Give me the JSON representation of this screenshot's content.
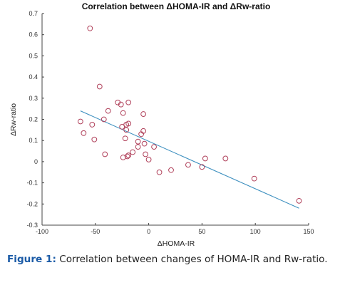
{
  "chart_data": {
    "type": "scatter",
    "title": "Correlation between ΔHOMA-IR and ΔRw-ratio",
    "xlabel": "ΔHOMA-IR",
    "ylabel": "ΔRw-ratio",
    "xlim": [
      -100,
      150
    ],
    "ylim": [
      -0.3,
      0.7
    ],
    "x_ticks": [
      "-100",
      "-50",
      "0",
      "50",
      "100",
      "150"
    ],
    "y_ticks": [
      "-0.3",
      "-0.2",
      "-0.1",
      "0",
      "0.1",
      "0.2",
      "0.3",
      "0.4",
      "0.5",
      "0.6",
      "0.7"
    ],
    "grid": false,
    "marker_color": "#b0405a",
    "trend_color": "#3c8fbf",
    "points": [
      {
        "x": -55,
        "y": 0.63
      },
      {
        "x": -46,
        "y": 0.355
      },
      {
        "x": -64,
        "y": 0.19
      },
      {
        "x": -61,
        "y": 0.135
      },
      {
        "x": -53,
        "y": 0.175
      },
      {
        "x": -51,
        "y": 0.105
      },
      {
        "x": -42,
        "y": 0.2
      },
      {
        "x": -41,
        "y": 0.035
      },
      {
        "x": -38,
        "y": 0.24
      },
      {
        "x": -29,
        "y": 0.28
      },
      {
        "x": -26,
        "y": 0.27
      },
      {
        "x": -19,
        "y": 0.28
      },
      {
        "x": -24,
        "y": 0.23
      },
      {
        "x": -25,
        "y": 0.165
      },
      {
        "x": -21,
        "y": 0.175
      },
      {
        "x": -19,
        "y": 0.18
      },
      {
        "x": -21,
        "y": 0.15
      },
      {
        "x": -22,
        "y": 0.11
      },
      {
        "x": -24,
        "y": 0.02
      },
      {
        "x": -20,
        "y": 0.025
      },
      {
        "x": -19,
        "y": 0.03
      },
      {
        "x": -15,
        "y": 0.045
      },
      {
        "x": -10,
        "y": 0.095
      },
      {
        "x": -10,
        "y": 0.07
      },
      {
        "x": -7,
        "y": 0.13
      },
      {
        "x": -5,
        "y": 0.225
      },
      {
        "x": -5,
        "y": 0.145
      },
      {
        "x": -4,
        "y": 0.085
      },
      {
        "x": -3,
        "y": 0.035
      },
      {
        "x": 0,
        "y": 0.01
      },
      {
        "x": 5,
        "y": 0.07
      },
      {
        "x": 10,
        "y": -0.05
      },
      {
        "x": 21,
        "y": -0.04
      },
      {
        "x": 37,
        "y": -0.015
      },
      {
        "x": 50,
        "y": -0.025
      },
      {
        "x": 53,
        "y": 0.015
      },
      {
        "x": 72,
        "y": 0.015
      },
      {
        "x": 99,
        "y": -0.08
      },
      {
        "x": 141,
        "y": -0.185
      }
    ],
    "trend_line": {
      "x": [
        -64,
        141
      ],
      "y": [
        0.24,
        -0.22
      ]
    }
  },
  "caption": {
    "label": "Figure 1:",
    "text": " Correlation between changes of HOMA-IR and Rw-ratio."
  }
}
